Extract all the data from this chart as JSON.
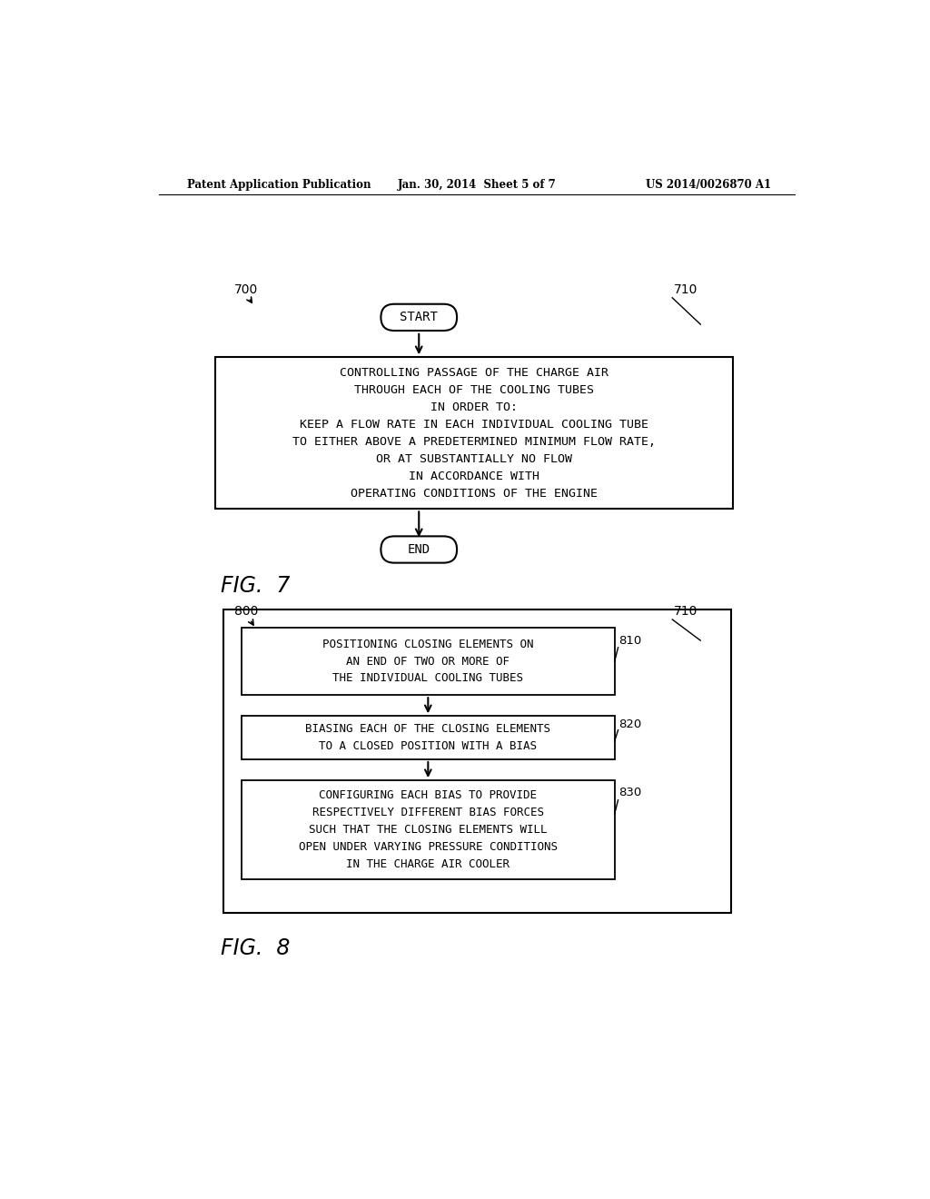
{
  "bg_color": "#ffffff",
  "header_left": "Patent Application Publication",
  "header_center": "Jan. 30, 2014  Sheet 5 of 7",
  "header_right": "US 2014/0026870 A1",
  "fig7_label": "700",
  "fig7_ref": "710",
  "fig7_caption": "FIG.  7",
  "start_text": "START",
  "end_text": "END",
  "box7_text": "CONTROLLING PASSAGE OF THE CHARGE AIR\nTHROUGH EACH OF THE COOLING TUBES\nIN ORDER TO:\nKEEP A FLOW RATE IN EACH INDIVIDUAL COOLING TUBE\nTO EITHER ABOVE A PREDETERMINED MINIMUM FLOW RATE,\nOR AT SUBSTANTIALLY NO FLOW\nIN ACCORDANCE WITH\nOPERATING CONDITIONS OF THE ENGINE",
  "fig8_label": "800",
  "fig8_ref": "710",
  "fig8_caption": "FIG.  8",
  "box810_text": "POSITIONING CLOSING ELEMENTS ON\nAN END OF TWO OR MORE OF\nTHE INDIVIDUAL COOLING TUBES",
  "box810_num": "810",
  "box820_text": "BIASING EACH OF THE CLOSING ELEMENTS\nTO A CLOSED POSITION WITH A BIAS",
  "box820_num": "820",
  "box830_text": "CONFIGURING EACH BIAS TO PROVIDE\nRESPECTIVELY DIFFERENT BIAS FORCES\nSUCH THAT THE CLOSING ELEMENTS WILL\nOPEN UNDER VARYING PRESSURE CONDITIONS\nIN THE CHARGE AIR COOLER",
  "box830_num": "830"
}
